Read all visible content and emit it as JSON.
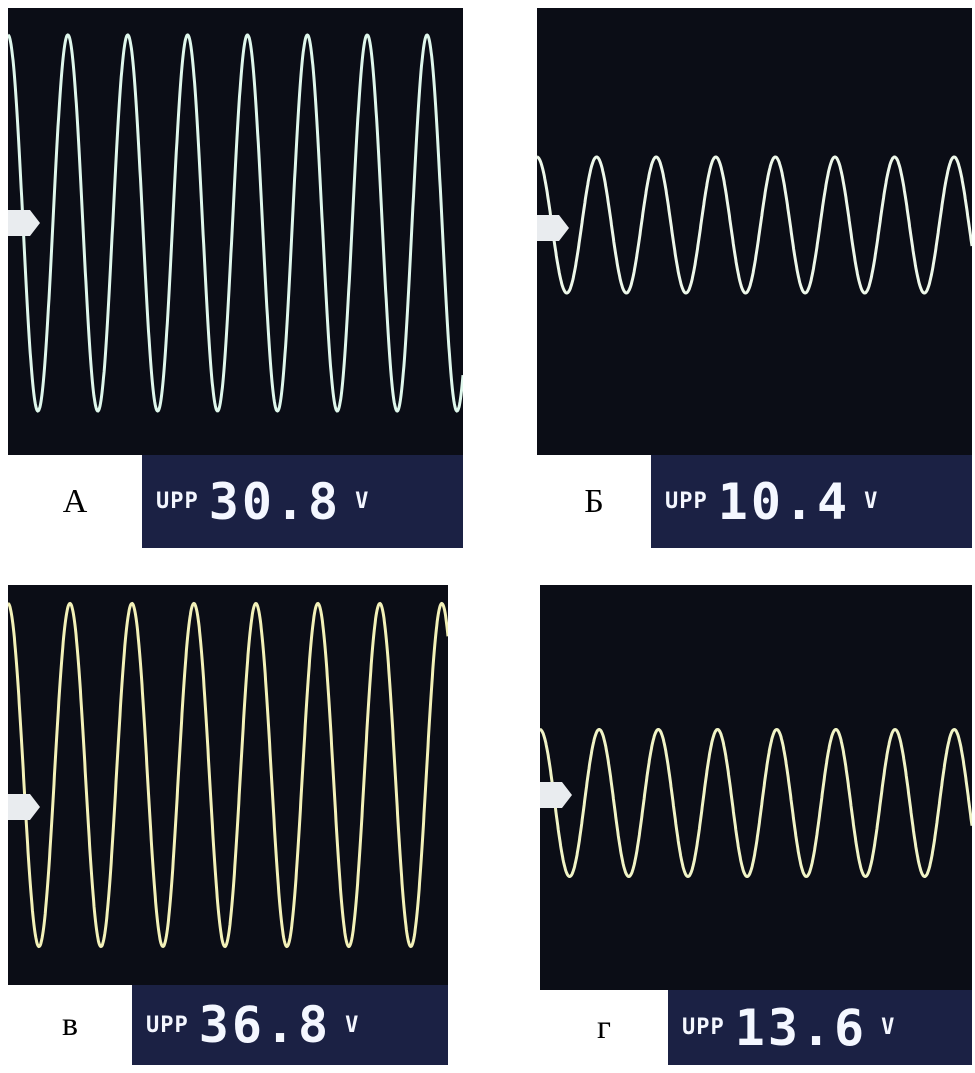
{
  "panels": [
    {
      "letter": "А",
      "readout_tag": "UPP",
      "readout_value": "30.8",
      "readout_unit": "V",
      "cycles": 7.6,
      "amplitude_fraction": 0.94,
      "trace_color": "#dff7ec"
    },
    {
      "letter": "Б",
      "readout_tag": "UPP",
      "readout_value": "10.4",
      "readout_unit": "V",
      "cycles": 7.3,
      "amplitude_fraction": 0.34,
      "trace_color": "#eef8ea"
    },
    {
      "letter": "в",
      "readout_tag": "UPP",
      "readout_value": "36.8",
      "readout_unit": "V",
      "cycles": 7.1,
      "amplitude_fraction": 0.98,
      "trace_color": "#f3f1b8"
    },
    {
      "letter": "г",
      "readout_tag": "UPP",
      "readout_value": "13.6",
      "readout_unit": "V",
      "cycles": 7.3,
      "amplitude_fraction": 0.42,
      "trace_color": "#f1f4c6"
    }
  ]
}
